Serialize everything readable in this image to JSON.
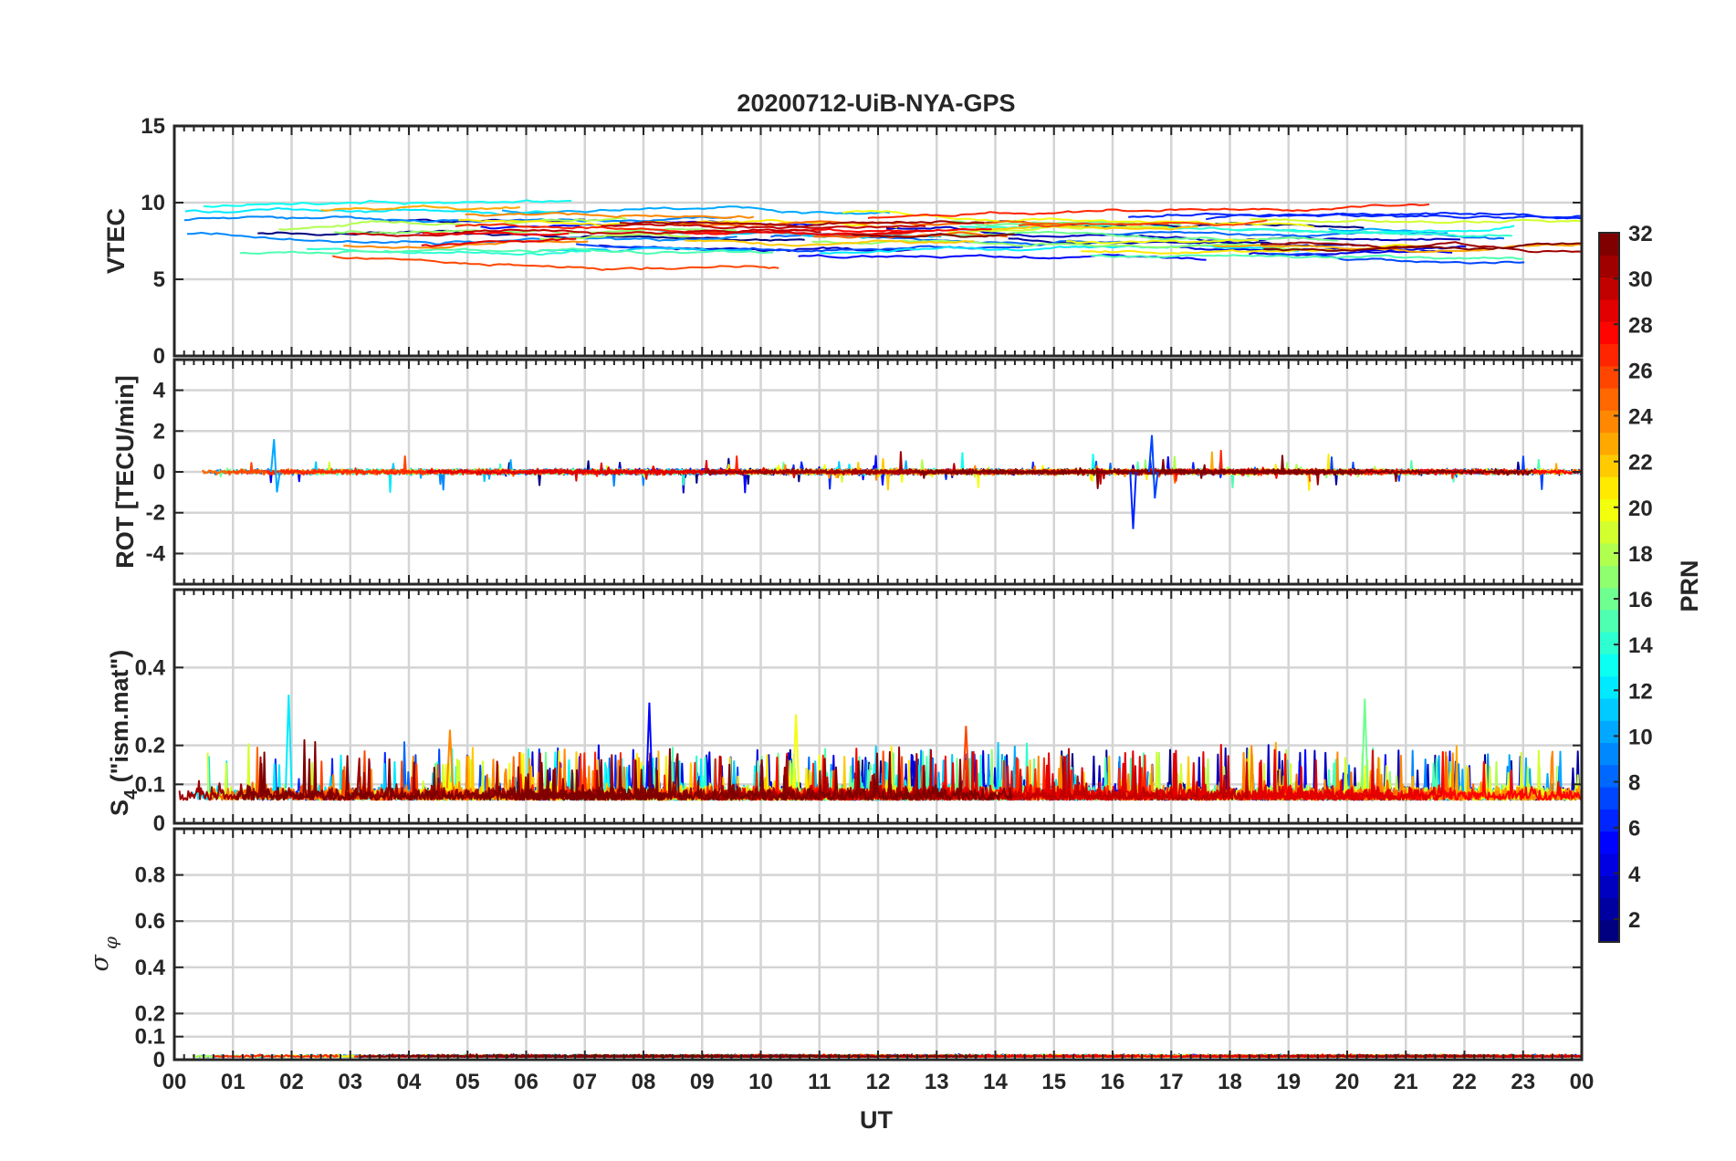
{
  "chart_data": [
    {
      "type": "line",
      "title": "20200712-UiB-NYA-GPS",
      "ylabel": "VTEC",
      "ylim": [
        0,
        15
      ],
      "yticks": [
        "0",
        "5",
        "10",
        "15"
      ],
      "yticks_values": [
        0,
        5,
        10,
        15
      ],
      "series_count": 32,
      "series_value_range": [
        5,
        11
      ],
      "grid": true
    },
    {
      "type": "line",
      "ylabel": "ROT [TECU/min]",
      "ylim": [
        -5.5,
        5.5
      ],
      "yticks": [
        "-4",
        "-2",
        "0",
        "2",
        "4"
      ],
      "yticks_values": [
        -4,
        -2,
        0,
        2,
        4
      ],
      "series_value_range": [
        -2.8,
        1.8
      ],
      "grid": true
    },
    {
      "type": "line",
      "ylabel_main": "S",
      "ylabel_sub": "4",
      "ylabel_rest": " (\"ism.mat\")",
      "ylim": [
        0,
        0.6
      ],
      "yticks": [
        "0",
        "0.1",
        "0.2",
        "0.4"
      ],
      "yticks_values": [
        0,
        0.1,
        0.2,
        0.4
      ],
      "series_value_range": [
        0.03,
        0.33
      ],
      "grid": true
    },
    {
      "type": "line",
      "ylabel_main": "σ",
      "ylabel_sub": "φ",
      "ylim": [
        0,
        1
      ],
      "yticks": [
        "0",
        "0.1",
        "0.2",
        "0.4",
        "0.6",
        "0.8"
      ],
      "yticks_values": [
        0,
        0.1,
        0.2,
        0.4,
        0.6,
        0.8
      ],
      "series_value_range": [
        0,
        0.05
      ],
      "grid": true
    }
  ],
  "x_axis": {
    "label": "UT",
    "range_hours": [
      0,
      24
    ],
    "ticks": [
      "00",
      "01",
      "02",
      "03",
      "04",
      "05",
      "06",
      "07",
      "08",
      "09",
      "10",
      "11",
      "12",
      "13",
      "14",
      "15",
      "16",
      "17",
      "18",
      "19",
      "20",
      "21",
      "22",
      "23",
      "00"
    ]
  },
  "colorbar": {
    "label": "PRN",
    "range": [
      1,
      32
    ],
    "ticks": [
      "2",
      "4",
      "6",
      "8",
      "10",
      "12",
      "14",
      "16",
      "18",
      "20",
      "22",
      "24",
      "26",
      "28",
      "30",
      "32"
    ],
    "tick_values": [
      2,
      4,
      6,
      8,
      10,
      12,
      14,
      16,
      18,
      20,
      22,
      24,
      26,
      28,
      30,
      32
    ],
    "colormap": "jet"
  }
}
